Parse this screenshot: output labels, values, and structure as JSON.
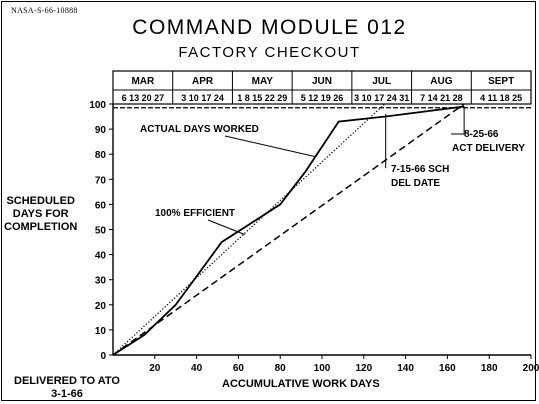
{
  "stamp": "NASA-S-66-10888",
  "chart_data": {
    "type": "line",
    "title": "COMMAND MODULE 012",
    "subtitle": "FACTORY CHECKOUT",
    "xlabel": "ACCUMULATIVE WORK DAYS",
    "ylabel": [
      "SCHEDULED",
      "DAYS FOR",
      "COMPLETION"
    ],
    "xlim": [
      0,
      200
    ],
    "ylim": [
      0,
      100
    ],
    "xticks": [
      20,
      40,
      60,
      80,
      100,
      120,
      140,
      160,
      180,
      200
    ],
    "yticks": [
      0,
      10,
      20,
      30,
      40,
      50,
      60,
      70,
      80,
      90,
      100
    ],
    "origin_note": [
      "DELIVERED TO ATO",
      "3-1-66"
    ],
    "calendar_months": [
      "MAR",
      "APR",
      "MAY",
      "JUN",
      "JUL",
      "AUG",
      "SEPT"
    ],
    "calendar_dates": [
      "6 13 20 27",
      "3 10 17 24",
      "1 8 15 22 29",
      "5 12 19 26",
      "3 10 17 24 31",
      "7 14 21 28",
      "4 11 18 25"
    ],
    "series": [
      {
        "name": "ACTUAL DAYS WORKED",
        "style": "solid",
        "points": [
          [
            0,
            0
          ],
          [
            15,
            8
          ],
          [
            30,
            20
          ],
          [
            52,
            45
          ],
          [
            80,
            60
          ],
          [
            92,
            73
          ],
          [
            108,
            93
          ],
          [
            130,
            95
          ],
          [
            168,
            99
          ]
        ]
      },
      {
        "name": "100% EFFICIENT",
        "style": "dotted",
        "points": [
          [
            0,
            0
          ],
          [
            130,
            100
          ]
        ]
      },
      {
        "name": "SCH",
        "style": "dashed",
        "points": [
          [
            0,
            0
          ],
          [
            168,
            100
          ]
        ]
      }
    ],
    "reference_line": {
      "y": 98.5,
      "style": "dashed",
      "x_range": [
        0,
        200
      ]
    },
    "annotations": [
      {
        "text": [
          "7-15-66 SCH",
          "DEL DATE"
        ],
        "x": 130
      },
      {
        "text": [
          "8-25-66",
          "ACT DELIVERY"
        ],
        "x": 168
      }
    ],
    "grid": false
  }
}
